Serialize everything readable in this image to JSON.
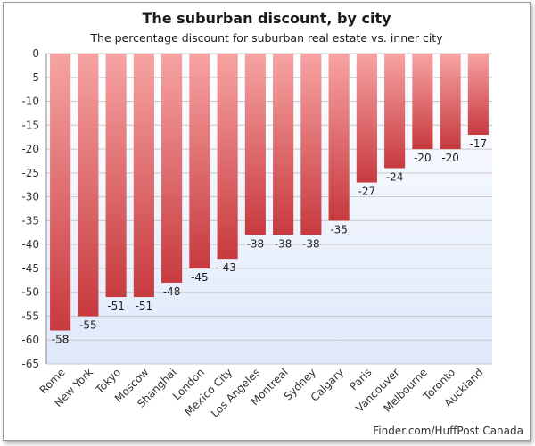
{
  "chart_data": {
    "type": "bar",
    "title": "The suburban discount, by city",
    "subtitle": "The percentage discount for suburban real estate vs. inner city",
    "credit": "Finder.com/HuffPost Canada",
    "categories": [
      "Rome",
      "New York",
      "Tokyo",
      "Moscow",
      "Shanghai",
      "London",
      "Mexico City",
      "Los Angeles",
      "Montreal",
      "Sydney",
      "Calgary",
      "Paris",
      "Vancouver",
      "Melbourne",
      "Toronto",
      "Auckland"
    ],
    "values": [
      -58,
      -55,
      -51,
      -51,
      -48,
      -45,
      -43,
      -38,
      -38,
      -38,
      -35,
      -27,
      -24,
      -20,
      -20,
      -17
    ],
    "ylim": [
      -65,
      0
    ],
    "yticks": [
      0,
      -5,
      -10,
      -15,
      -20,
      -25,
      -30,
      -35,
      -40,
      -45,
      -50,
      -55,
      -60,
      -65
    ],
    "grid": true,
    "legend": "none",
    "colors": {
      "bar_top": "#f7a3a3",
      "bar_bottom": "#c73a3e",
      "plot_bg_top": "#ffffff",
      "plot_bg_bottom": "#dfe9fb",
      "grid": "#c8c8c8"
    }
  }
}
